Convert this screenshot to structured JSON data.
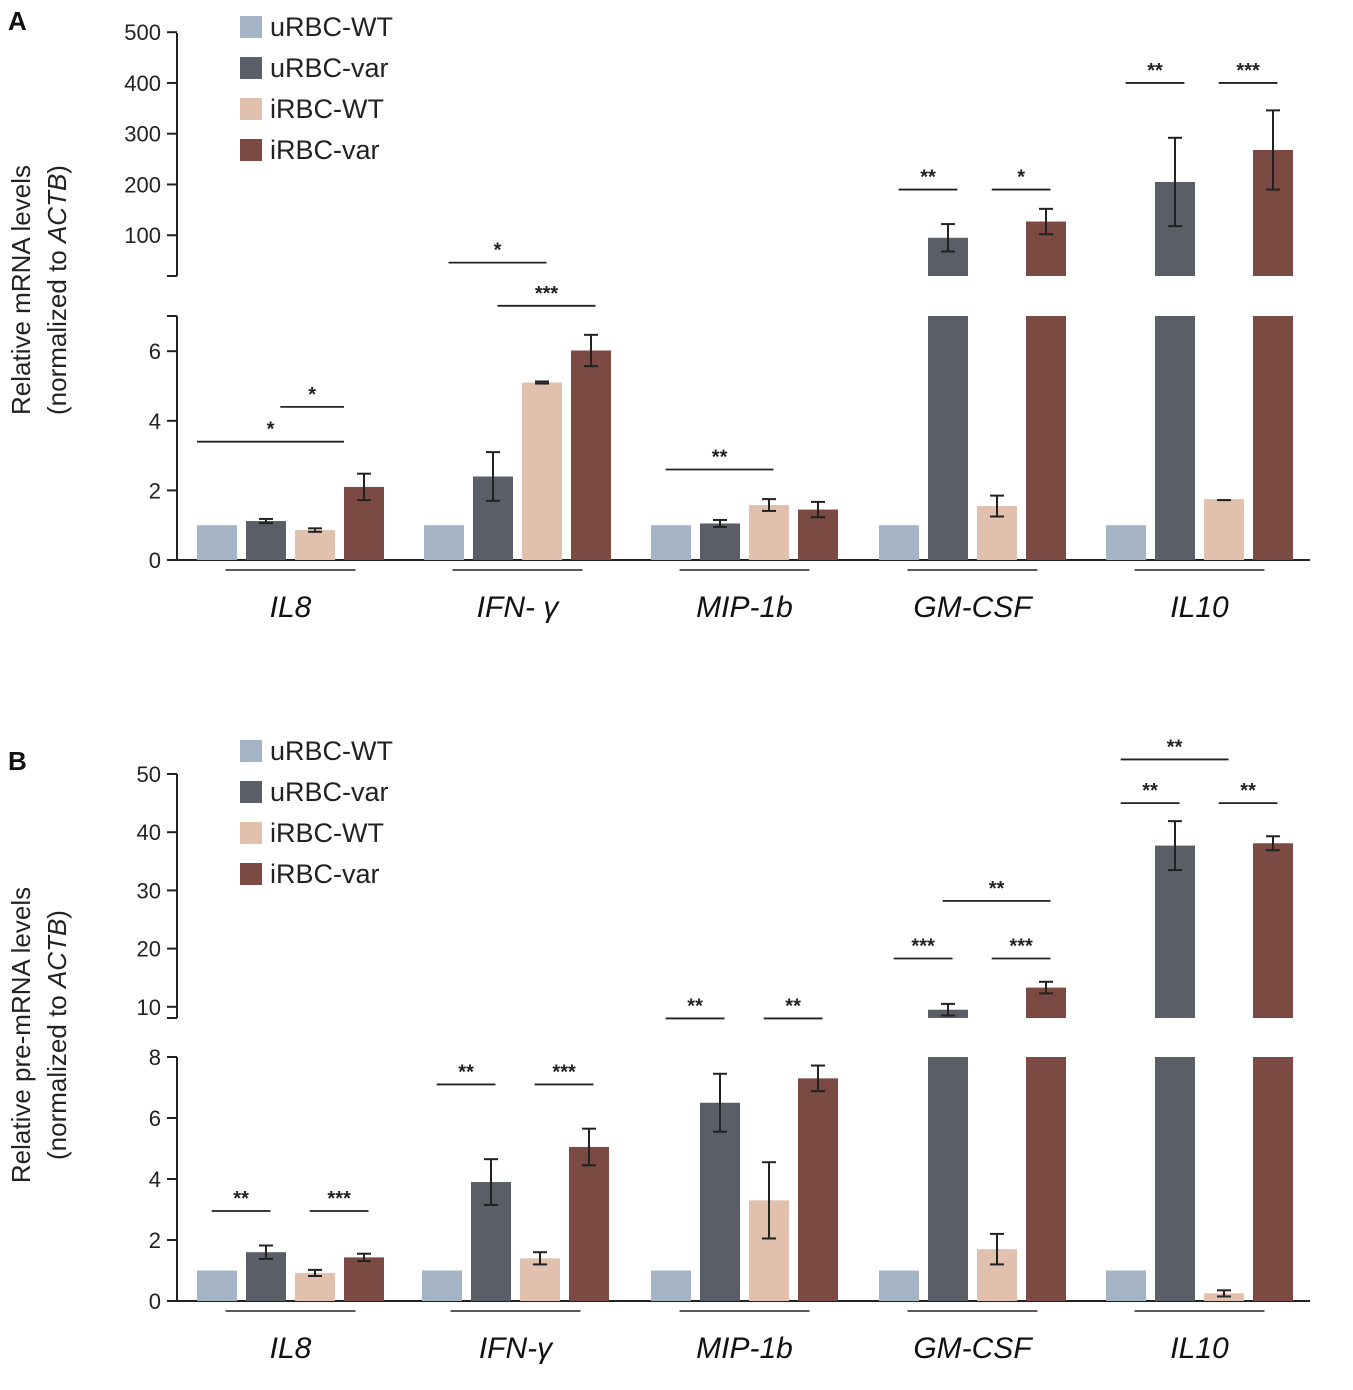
{
  "chart_data": [
    {
      "type": "bar",
      "panel_label": "A",
      "ylabel_line1": "Relative mRNA levels",
      "ylabel_line2_prefix": "(normalized to ",
      "ylabel_line2_italic": "ACTB",
      "ylabel_line2_suffix": ")",
      "categories": [
        "IL8",
        "IFN- γ",
        "MIP-1b",
        "GM-CSF",
        "IL10"
      ],
      "axis_break": true,
      "lower_axis": {
        "ylim": [
          0,
          7
        ],
        "ticks": [
          "0",
          "2",
          "4",
          "6"
        ],
        "tick_values": [
          0,
          2,
          4,
          6
        ]
      },
      "upper_axis": {
        "ylim": [
          0,
          500
        ],
        "ticks": [
          "100",
          "200",
          "300",
          "400",
          "500"
        ],
        "tick_values": [
          100,
          200,
          300,
          400,
          500
        ]
      },
      "series": [
        {
          "name": "uRBC-WT",
          "color": "#a5b4c5",
          "values": [
            1.0,
            1.0,
            1.0,
            1.0,
            1.0
          ],
          "errors": [
            0,
            0,
            0,
            0,
            0
          ]
        },
        {
          "name": "uRBC-var",
          "color": "#595e67",
          "values": [
            1.12,
            2.4,
            1.05,
            95,
            205
          ],
          "errors": [
            0.06,
            0.7,
            0.1,
            27,
            87
          ]
        },
        {
          "name": "iRBC-WT",
          "color": "#e1c1ad",
          "values": [
            0.86,
            5.1,
            1.58,
            1.55,
            1.75
          ],
          "errors": [
            0.05,
            0.03,
            0.17,
            0.3,
            0
          ]
        },
        {
          "name": "iRBC-var",
          "color": "#7b4a43",
          "values": [
            2.1,
            6.02,
            1.45,
            127,
            268
          ],
          "errors": [
            0.38,
            0.45,
            0.22,
            25,
            78
          ]
        }
      ],
      "significance": [
        {
          "label": "*",
          "category": 0,
          "from": 0,
          "to": 3,
          "y_value": 3.4,
          "axis": "lower"
        },
        {
          "label": "*",
          "category": 0,
          "from": 1.7,
          "to": 3,
          "y_value": 4.4,
          "axis": "lower"
        },
        {
          "label": "*",
          "category": 1,
          "from": 0.5,
          "to": 2.5,
          "y_value": 46,
          "axis": "upper"
        },
        {
          "label": "***",
          "category": 1,
          "from": 1.5,
          "to": 3.5,
          "y_value": -39,
          "axis": "upper"
        },
        {
          "label": "**",
          "category": 2,
          "from": 0.3,
          "to": 2.5,
          "y_value": 2.6,
          "axis": "lower"
        },
        {
          "label": "**",
          "category": 3,
          "from": 0.4,
          "to": 1.6,
          "y_value": 190,
          "axis": "upper"
        },
        {
          "label": "*",
          "category": 3,
          "from": 2.3,
          "to": 3.5,
          "y_value": 190,
          "axis": "upper"
        },
        {
          "label": "**",
          "category": 4,
          "from": 0.4,
          "to": 1.6,
          "y_value": 400,
          "axis": "upper"
        },
        {
          "label": "***",
          "category": 4,
          "from": 2.3,
          "to": 3.5,
          "y_value": 400,
          "axis": "upper"
        }
      ]
    },
    {
      "type": "bar",
      "panel_label": "B",
      "ylabel_line1": "Relative pre-mRNA levels",
      "ylabel_line2_prefix": "(normalized to ",
      "ylabel_line2_italic": "ACTB",
      "ylabel_line2_suffix": ")",
      "categories": [
        "IL8",
        "IFN-γ",
        "MIP-1b",
        "GM-CSF",
        "IL10"
      ],
      "axis_break": true,
      "lower_axis": {
        "ylim": [
          0,
          8
        ],
        "ticks": [
          "0",
          "2",
          "4",
          "6",
          "8"
        ],
        "tick_values": [
          0,
          2,
          4,
          6,
          8
        ]
      },
      "upper_axis": {
        "ylim": [
          8,
          50
        ],
        "ticks": [
          "10",
          "20",
          "30",
          "40",
          "50"
        ],
        "tick_values": [
          10,
          20,
          30,
          40,
          50
        ]
      },
      "series": [
        {
          "name": "uRBC-WT",
          "color": "#a5b4c5",
          "values": [
            1.0,
            1.0,
            1.0,
            1.0,
            1.0
          ],
          "errors": [
            0,
            0,
            0,
            0,
            0
          ]
        },
        {
          "name": "uRBC-var",
          "color": "#595e67",
          "values": [
            1.6,
            3.9,
            6.5,
            9.5,
            37.7
          ],
          "errors": [
            0.22,
            0.75,
            0.95,
            1.0,
            4.2
          ]
        },
        {
          "name": "iRBC-WT",
          "color": "#e1c1ad",
          "values": [
            0.92,
            1.4,
            3.3,
            1.7,
            0.25
          ],
          "errors": [
            0.1,
            0.2,
            1.25,
            0.5,
            0.1
          ]
        },
        {
          "name": "iRBC-var",
          "color": "#7b4a43",
          "values": [
            1.43,
            5.05,
            7.3,
            13.3,
            38.1
          ],
          "errors": [
            0.12,
            0.6,
            0.42,
            1.0,
            1.2
          ]
        }
      ],
      "significance": [
        {
          "label": "**",
          "category": 0,
          "from": 0.3,
          "to": 1.5,
          "y_value": 2.95,
          "axis": "lower"
        },
        {
          "label": "***",
          "category": 0,
          "from": 2.3,
          "to": 3.5,
          "y_value": 2.95,
          "axis": "lower"
        },
        {
          "label": "**",
          "category": 1,
          "from": 0.3,
          "to": 1.5,
          "y_value": 7.1,
          "axis": "lower"
        },
        {
          "label": "***",
          "category": 1,
          "from": 2.3,
          "to": 3.5,
          "y_value": 7.1,
          "axis": "lower"
        },
        {
          "label": "**",
          "category": 2,
          "from": 0.3,
          "to": 1.5,
          "y_value": 8.0,
          "axis": "upper"
        },
        {
          "label": "**",
          "category": 2,
          "from": 2.3,
          "to": 3.5,
          "y_value": 8.0,
          "axis": "upper"
        },
        {
          "label": "***",
          "category": 3,
          "from": 0.3,
          "to": 1.5,
          "y_value": 18.3,
          "axis": "upper"
        },
        {
          "label": "***",
          "category": 3,
          "from": 2.3,
          "to": 3.5,
          "y_value": 18.3,
          "axis": "upper"
        },
        {
          "label": "**",
          "category": 3,
          "from": 1.3,
          "to": 3.5,
          "y_value": 28.2,
          "axis": "upper"
        },
        {
          "label": "**",
          "category": 4,
          "from": 0.3,
          "to": 1.5,
          "y_value": 45.0,
          "axis": "upper"
        },
        {
          "label": "**",
          "category": 4,
          "from": 2.3,
          "to": 3.5,
          "y_value": 45.0,
          "axis": "upper"
        },
        {
          "label": "**",
          "category": 4,
          "from": 0.3,
          "to": 2.5,
          "y_value": 52.5,
          "axis": "upper"
        }
      ]
    }
  ]
}
